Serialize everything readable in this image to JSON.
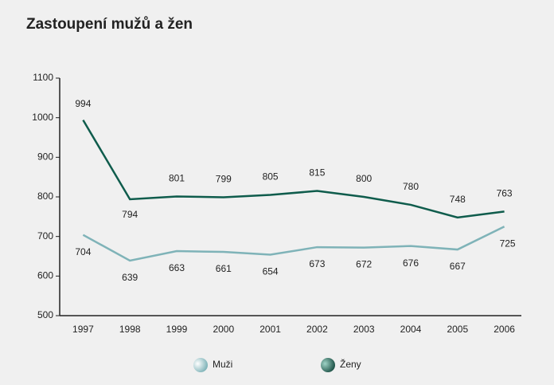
{
  "chart_data": {
    "type": "line",
    "title": "Zastoupení mužů a žen",
    "categories": [
      "1997",
      "1998",
      "1999",
      "2000",
      "2001",
      "2002",
      "2003",
      "2004",
      "2005",
      "2006"
    ],
    "series": [
      {
        "name": "Muži",
        "color": "#7fb3b8",
        "values": [
          704,
          639,
          663,
          661,
          654,
          673,
          672,
          676,
          667,
          725
        ]
      },
      {
        "name": "Ženy",
        "color": "#0f5c4c",
        "values": [
          994,
          794,
          801,
          799,
          805,
          815,
          800,
          780,
          748,
          763
        ]
      }
    ],
    "ylim": [
      500,
      1100
    ],
    "yticks": [
      500,
      600,
      700,
      800,
      900,
      1000,
      1100
    ],
    "grid": false,
    "legend": "bottom"
  }
}
